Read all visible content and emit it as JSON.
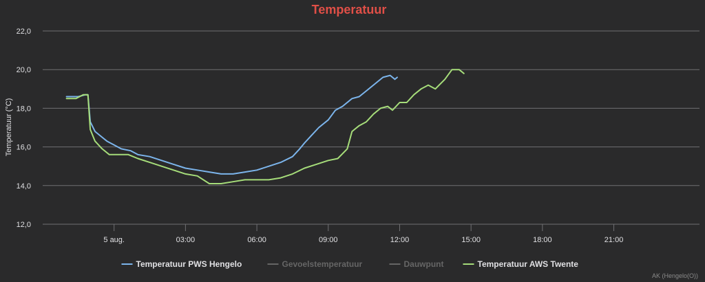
{
  "chart_data": {
    "type": "line",
    "title": "Temperatuur",
    "ylabel": "Temperatuur (°C)",
    "xlabel": "",
    "ylim": [
      12.0,
      22.0
    ],
    "yticks": [
      "12,0",
      "14,0",
      "16,0",
      "18,0",
      "20,0",
      "22,0"
    ],
    "xlim_hours": [
      -3.0,
      24.6
    ],
    "xticks": [
      {
        "h": 0,
        "label": "5 aug."
      },
      {
        "h": 3,
        "label": "03:00"
      },
      {
        "h": 6,
        "label": "06:00"
      },
      {
        "h": 9,
        "label": "09:00"
      },
      {
        "h": 12,
        "label": "12:00"
      },
      {
        "h": 15,
        "label": "15:00"
      },
      {
        "h": 18,
        "label": "18:00"
      },
      {
        "h": 21,
        "label": "21:00"
      }
    ],
    "grid": true,
    "legend_position": "bottom-center",
    "series": [
      {
        "name": "Temperatuur PWS Hengelo",
        "color": "#7cb5ec",
        "visible": true,
        "points": [
          [
            -2.0,
            18.6
          ],
          [
            -1.5,
            18.6
          ],
          [
            -1.2,
            18.7
          ],
          [
            -1.1,
            18.7
          ],
          [
            -1.0,
            17.3
          ],
          [
            -0.8,
            16.8
          ],
          [
            -0.5,
            16.5
          ],
          [
            -0.3,
            16.3
          ],
          [
            0.0,
            16.1
          ],
          [
            0.3,
            15.9
          ],
          [
            0.7,
            15.8
          ],
          [
            1.0,
            15.6
          ],
          [
            1.5,
            15.5
          ],
          [
            2.0,
            15.3
          ],
          [
            2.5,
            15.1
          ],
          [
            3.0,
            14.9
          ],
          [
            3.5,
            14.8
          ],
          [
            4.0,
            14.7
          ],
          [
            4.5,
            14.6
          ],
          [
            5.0,
            14.6
          ],
          [
            5.5,
            14.7
          ],
          [
            6.0,
            14.8
          ],
          [
            6.5,
            15.0
          ],
          [
            7.0,
            15.2
          ],
          [
            7.5,
            15.5
          ],
          [
            7.8,
            15.9
          ],
          [
            8.0,
            16.2
          ],
          [
            8.3,
            16.6
          ],
          [
            8.6,
            17.0
          ],
          [
            9.0,
            17.4
          ],
          [
            9.3,
            17.9
          ],
          [
            9.6,
            18.1
          ],
          [
            10.0,
            18.5
          ],
          [
            10.3,
            18.6
          ],
          [
            10.6,
            18.9
          ],
          [
            11.0,
            19.3
          ],
          [
            11.3,
            19.6
          ],
          [
            11.6,
            19.7
          ],
          [
            11.8,
            19.5
          ],
          [
            11.9,
            19.6
          ]
        ]
      },
      {
        "name": "Gevoelstemperatuur",
        "color": "#666666",
        "visible": false,
        "points": []
      },
      {
        "name": "Dauwpunt",
        "color": "#666666",
        "visible": false,
        "points": []
      },
      {
        "name": "Temperatuur AWS Twente",
        "color": "#a6dd7a",
        "visible": true,
        "points": [
          [
            -2.0,
            18.5
          ],
          [
            -1.6,
            18.5
          ],
          [
            -1.3,
            18.7
          ],
          [
            -1.1,
            18.7
          ],
          [
            -1.0,
            16.9
          ],
          [
            -0.8,
            16.3
          ],
          [
            -0.5,
            15.9
          ],
          [
            -0.2,
            15.6
          ],
          [
            0.0,
            15.6
          ],
          [
            0.6,
            15.6
          ],
          [
            1.0,
            15.4
          ],
          [
            1.5,
            15.2
          ],
          [
            2.0,
            15.0
          ],
          [
            2.5,
            14.8
          ],
          [
            3.0,
            14.6
          ],
          [
            3.5,
            14.5
          ],
          [
            4.0,
            14.1
          ],
          [
            4.5,
            14.1
          ],
          [
            5.0,
            14.2
          ],
          [
            5.5,
            14.3
          ],
          [
            6.0,
            14.3
          ],
          [
            6.5,
            14.3
          ],
          [
            7.0,
            14.4
          ],
          [
            7.5,
            14.6
          ],
          [
            8.0,
            14.9
          ],
          [
            8.5,
            15.1
          ],
          [
            9.0,
            15.3
          ],
          [
            9.4,
            15.4
          ],
          [
            9.8,
            15.9
          ],
          [
            10.0,
            16.8
          ],
          [
            10.3,
            17.1
          ],
          [
            10.6,
            17.3
          ],
          [
            10.9,
            17.7
          ],
          [
            11.2,
            18.0
          ],
          [
            11.5,
            18.1
          ],
          [
            11.7,
            17.9
          ],
          [
            12.0,
            18.3
          ],
          [
            12.3,
            18.3
          ],
          [
            12.6,
            18.7
          ],
          [
            12.9,
            19.0
          ],
          [
            13.2,
            19.2
          ],
          [
            13.5,
            19.0
          ],
          [
            13.9,
            19.5
          ],
          [
            14.2,
            20.0
          ],
          [
            14.5,
            20.0
          ],
          [
            14.7,
            19.8
          ]
        ]
      }
    ],
    "credits": "AK (Hengelo(O))"
  }
}
